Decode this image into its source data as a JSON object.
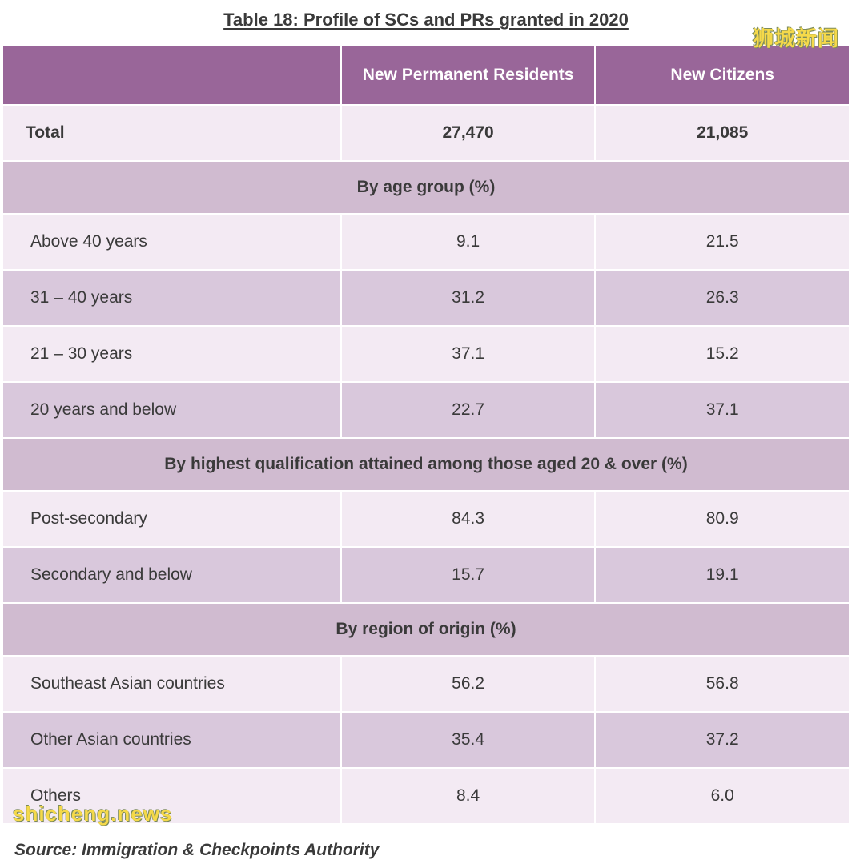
{
  "title": "Table 18: Profile of SCs and PRs granted in 2020",
  "watermark_top": "狮城新闻",
  "watermark_bottom": "shicheng.news",
  "columns": {
    "c1": "New Permanent Residents",
    "c2": "New Citizens"
  },
  "total": {
    "label": "Total",
    "pr": "27,470",
    "citizen": "21,085"
  },
  "sections": [
    {
      "heading": "By age group (%)",
      "rows": [
        {
          "label": "Above 40 years",
          "pr": "9.1",
          "citizen": "21.5"
        },
        {
          "label": "31 – 40 years",
          "pr": "31.2",
          "citizen": "26.3"
        },
        {
          "label": "21 – 30 years",
          "pr": "37.1",
          "citizen": "15.2"
        },
        {
          "label": "20 years and below",
          "pr": "22.7",
          "citizen": "37.1"
        }
      ]
    },
    {
      "heading": "By highest qualification attained among those aged 20 & over (%)",
      "rows": [
        {
          "label": "Post-secondary",
          "pr": "84.3",
          "citizen": "80.9"
        },
        {
          "label": "Secondary and below",
          "pr": "15.7",
          "citizen": "19.1"
        }
      ]
    },
    {
      "heading": "By region of origin (%)",
      "rows": [
        {
          "label": "Southeast Asian countries",
          "pr": "56.2",
          "citizen": "56.8"
        },
        {
          "label": "Other Asian countries",
          "pr": "35.4",
          "citizen": "37.2"
        },
        {
          "label": "Others",
          "pr": "8.4",
          "citizen": "6.0"
        }
      ]
    }
  ],
  "source": "Source: Immigration & Checkpoints Authority",
  "styling": {
    "type": "table",
    "header_bg": "#996699",
    "header_fg": "#ffffff",
    "section_bg": "#d0bbd0",
    "row_odd_bg": "#f3eaf3",
    "row_even_bg": "#d9c8dc",
    "text_color": "#3a3a3a",
    "font_size_body": 21,
    "font_size_title": 22,
    "border_spacing": 2,
    "col_widths_pct": [
      40,
      30,
      30
    ]
  }
}
